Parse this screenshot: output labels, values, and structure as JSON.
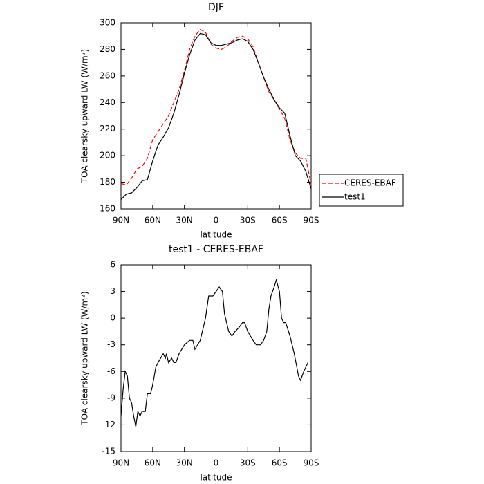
{
  "chart_data": [
    {
      "type": "line",
      "title": "DJF",
      "xlabel": "latitude",
      "ylabel": "TOA clearsky upward LW (W/m²)",
      "x": [
        90,
        85,
        80,
        75,
        70,
        65,
        60,
        55,
        50,
        45,
        40,
        35,
        30,
        25,
        20,
        15,
        10,
        5,
        0,
        -5,
        -10,
        -15,
        -20,
        -25,
        -30,
        -35,
        -40,
        -45,
        -50,
        -55,
        -60,
        -65,
        -70,
        -75,
        -80,
        -85,
        -90
      ],
      "series": [
        {
          "name": "CERES-EBAF",
          "color": "#ff0000",
          "linestyle": "dashed",
          "values": [
            179,
            178,
            183,
            190,
            192,
            198,
            212,
            218,
            224,
            230,
            240,
            250,
            264,
            280,
            290,
            295,
            293,
            284,
            281,
            280,
            282,
            286,
            289,
            290,
            288,
            282,
            270,
            259,
            248,
            242,
            235,
            228,
            212,
            202,
            198,
            198,
            178
          ]
        },
        {
          "name": "test1",
          "color": "#000000",
          "linestyle": "solid",
          "values": [
            167,
            171,
            172,
            176,
            181,
            182,
            196,
            208,
            214,
            221,
            232,
            246,
            262,
            276,
            287,
            292,
            291,
            285,
            283,
            283,
            284,
            285,
            287,
            288,
            286,
            280,
            270,
            259,
            250,
            242,
            236,
            232,
            215,
            200,
            196,
            188,
            175
          ]
        }
      ],
      "xlim": [
        90,
        -90
      ],
      "xticks": [
        {
          "value": 90,
          "label": "90N"
        },
        {
          "value": 60,
          "label": "60N"
        },
        {
          "value": 30,
          "label": "30N"
        },
        0,
        {
          "value": -30,
          "label": "30S"
        },
        {
          "value": -60,
          "label": "60S"
        },
        {
          "value": -90,
          "label": "90S"
        }
      ],
      "ylim": [
        160,
        300
      ],
      "yticks": [
        160,
        180,
        200,
        220,
        240,
        260,
        280,
        300
      ],
      "legend": "right"
    },
    {
      "type": "line",
      "title": "test1 - CERES-EBAF",
      "xlabel": "latitude",
      "ylabel": "TOA clearsky upward LW (W/m²)",
      "x": [
        90,
        88,
        86,
        84,
        82,
        80,
        78,
        76,
        74,
        72,
        70,
        67,
        65,
        62,
        60,
        57,
        55,
        50,
        48,
        47,
        45,
        42,
        40,
        38,
        35,
        30,
        25,
        22,
        20,
        15,
        10,
        7,
        3,
        0,
        -3,
        -6,
        -8,
        -12,
        -15,
        -18,
        -22,
        -25,
        -27,
        -30,
        -35,
        -38,
        -42,
        -45,
        -48,
        -50,
        -52,
        -55,
        -57,
        -60,
        -62,
        -64,
        -66,
        -70,
        -74,
        -78,
        -80,
        -83,
        -87
      ],
      "values": [
        -11,
        -8,
        -6,
        -6.5,
        -9,
        -9.5,
        -11,
        -12.2,
        -10.5,
        -11,
        -10.5,
        -10.5,
        -8.5,
        -8.5,
        -7.5,
        -5.5,
        -5,
        -4,
        -4.5,
        -4,
        -5,
        -4.5,
        -5,
        -5,
        -4,
        -3,
        -2.5,
        -2.5,
        -3.5,
        -2.5,
        0,
        2.5,
        2.5,
        3,
        3.5,
        3,
        0.5,
        -1.5,
        -2,
        -1.5,
        -1,
        -0.5,
        -0.5,
        -1.5,
        -2.5,
        -3,
        -3,
        -2.5,
        -1.5,
        1,
        2.5,
        3.5,
        4.3,
        3,
        0,
        -0.5,
        -0.5,
        -2,
        -4,
        -6.5,
        -7,
        -6,
        -5
      ],
      "color": "#000000",
      "xlim": [
        90,
        -90
      ],
      "xticks": [
        {
          "value": 90,
          "label": "90N"
        },
        {
          "value": 60,
          "label": "60N"
        },
        {
          "value": 30,
          "label": "30N"
        },
        0,
        {
          "value": -30,
          "label": "30S"
        },
        {
          "value": -60,
          "label": "60S"
        },
        {
          "value": -90,
          "label": "90S"
        }
      ],
      "ylim": [
        -15,
        6
      ],
      "yticks": [
        -15,
        -12,
        -9,
        -6,
        -3,
        0,
        3,
        6
      ]
    }
  ]
}
